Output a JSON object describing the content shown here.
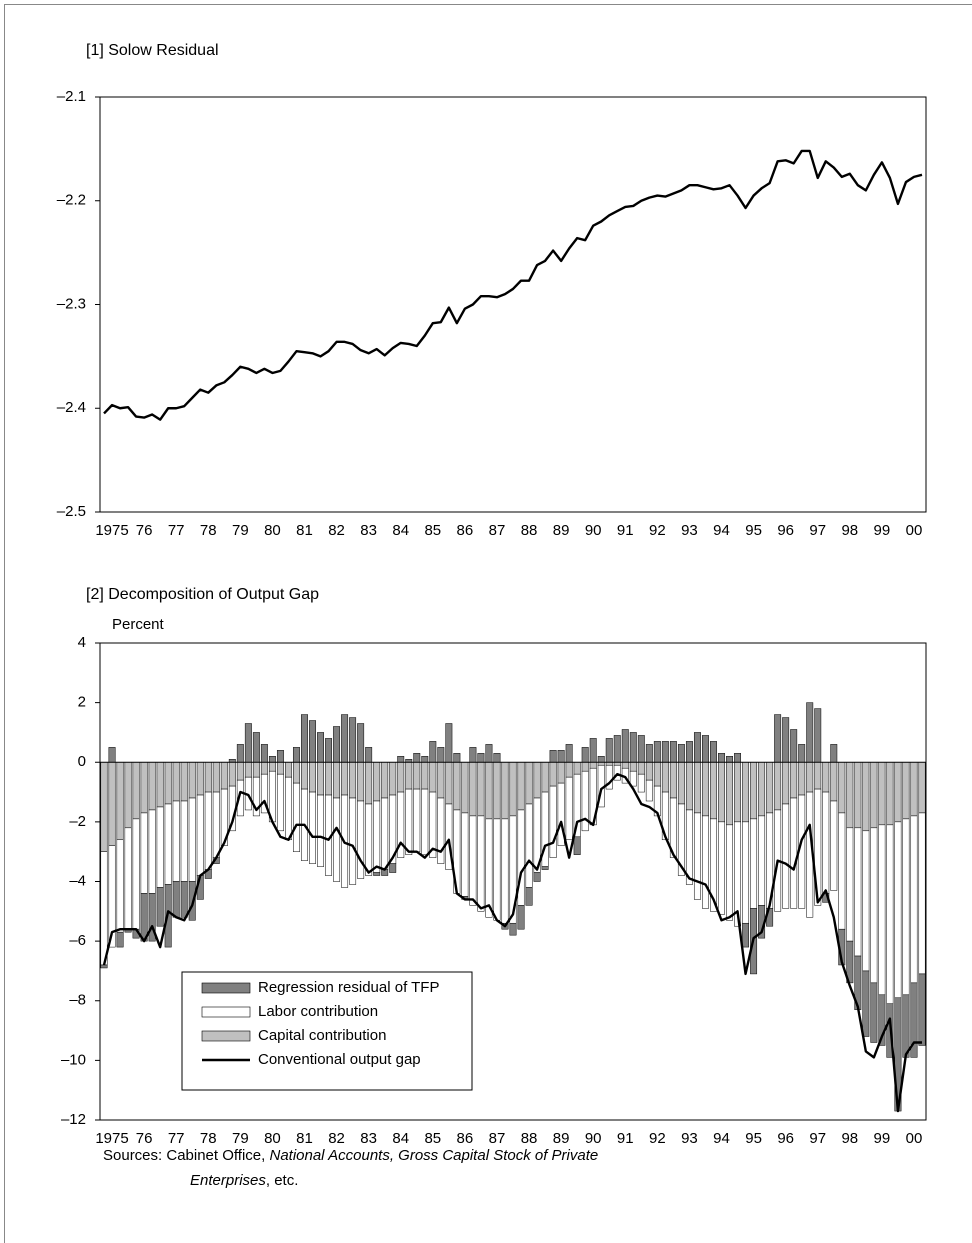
{
  "chart_data": [
    {
      "type": "line",
      "title": "[1] Solow Residual",
      "categories": [
        null,
        "1975",
        null,
        null,
        null,
        "76",
        null,
        null,
        null,
        "77",
        null,
        null,
        null,
        "78",
        null,
        null,
        null,
        "79",
        null,
        null,
        null,
        "80",
        null,
        null,
        null,
        "81",
        null,
        null,
        null,
        "82",
        null,
        null,
        null,
        "83",
        null,
        null,
        null,
        "84",
        null,
        null,
        null,
        "85",
        null,
        null,
        null,
        "86",
        null,
        null,
        null,
        "87",
        null,
        null,
        null,
        "88",
        null,
        null,
        null,
        "89",
        null,
        null,
        null,
        "90",
        null,
        null,
        null,
        "91",
        null,
        null,
        null,
        "92",
        null,
        null,
        null,
        "93",
        null,
        null,
        null,
        "94",
        null,
        null,
        null,
        "95",
        null,
        null,
        null,
        "96",
        null,
        null,
        null,
        "97",
        null,
        null,
        null,
        "98",
        null,
        null,
        null,
        "99",
        null,
        null,
        null,
        "00",
        null
      ],
      "values": [
        -2.405,
        -2.397,
        -2.4,
        -2.399,
        -2.408,
        -2.409,
        -2.406,
        -2.411,
        -2.4,
        -2.4,
        -2.398,
        -2.39,
        -2.382,
        -2.385,
        -2.378,
        -2.375,
        -2.368,
        -2.36,
        -2.362,
        -2.366,
        -2.362,
        -2.366,
        -2.364,
        -2.355,
        -2.345,
        -2.346,
        -2.347,
        -2.35,
        -2.345,
        -2.336,
        -2.336,
        -2.338,
        -2.344,
        -2.347,
        -2.343,
        -2.349,
        -2.342,
        -2.337,
        -2.338,
        -2.34,
        -2.33,
        -2.318,
        -2.317,
        -2.303,
        -2.318,
        -2.304,
        -2.3,
        -2.292,
        -2.292,
        -2.293,
        -2.29,
        -2.285,
        -2.277,
        -2.277,
        -2.262,
        -2.258,
        -2.248,
        -2.258,
        -2.246,
        -2.236,
        -2.238,
        -2.224,
        -2.22,
        -2.214,
        -2.21,
        -2.206,
        -2.205,
        -2.2,
        -2.197,
        -2.195,
        -2.196,
        -2.193,
        -2.19,
        -2.185,
        -2.185,
        -2.187,
        -2.189,
        -2.188,
        -2.185,
        -2.195,
        -2.207,
        -2.195,
        -2.188,
        -2.183,
        -2.162,
        -2.161,
        -2.164,
        -2.152,
        -2.152,
        -2.178,
        -2.162,
        -2.168,
        -2.177,
        -2.174,
        -2.185,
        -2.19,
        -2.175,
        -2.163,
        -2.178,
        -2.203,
        -2.182,
        -2.177,
        -2.175
      ],
      "color": "#000000",
      "ylim": [
        -2.5,
        -2.1
      ],
      "yticks": [
        {
          "value": -2.5,
          "label": "–2.5"
        },
        {
          "value": -2.4,
          "label": "–2.4"
        },
        {
          "value": -2.3,
          "label": "–2.3"
        },
        {
          "value": -2.2,
          "label": "–2.2"
        },
        {
          "value": -2.1,
          "label": "–2.1"
        }
      ]
    },
    {
      "type": "bar",
      "title": "[2] Decomposition of Output Gap",
      "ylabel": "Percent",
      "stacked": true,
      "categories": [
        null,
        "1975",
        null,
        null,
        null,
        "76",
        null,
        null,
        null,
        "77",
        null,
        null,
        null,
        "78",
        null,
        null,
        null,
        "79",
        null,
        null,
        null,
        "80",
        null,
        null,
        null,
        "81",
        null,
        null,
        null,
        "82",
        null,
        null,
        null,
        "83",
        null,
        null,
        null,
        "84",
        null,
        null,
        null,
        "85",
        null,
        null,
        null,
        "86",
        null,
        null,
        null,
        "87",
        null,
        null,
        null,
        "88",
        null,
        null,
        null,
        "89",
        null,
        null,
        null,
        "90",
        null,
        null,
        null,
        "91",
        null,
        null,
        null,
        "92",
        null,
        null,
        null,
        "93",
        null,
        null,
        null,
        "94",
        null,
        null,
        null,
        "95",
        null,
        null,
        null,
        "96",
        null,
        null,
        null,
        "97",
        null,
        null,
        null,
        "98",
        null,
        null,
        null,
        "99",
        null,
        null,
        null,
        "00",
        null
      ],
      "series": [
        {
          "name": "Regression residual of TFP",
          "type": "bar",
          "color": "#808080",
          "values": [
            -0.1,
            0.5,
            -0.5,
            -0.1,
            -0.3,
            -1.6,
            -1.6,
            -1.3,
            -2.1,
            -1.2,
            -1.2,
            -1.3,
            -0.8,
            -0.3,
            -0.2,
            0.0,
            0.1,
            0.6,
            1.3,
            1.0,
            0.6,
            0.2,
            0.4,
            0.0,
            0.5,
            1.6,
            1.4,
            1.0,
            0.8,
            1.2,
            1.6,
            1.5,
            1.3,
            0.5,
            -0.1,
            -0.2,
            -0.3,
            0.2,
            0.1,
            0.3,
            0.2,
            0.7,
            0.5,
            1.3,
            0.3,
            -0.1,
            0.5,
            0.3,
            0.6,
            0.3,
            -0.2,
            -0.4,
            -0.8,
            -0.6,
            -0.3,
            -0.1,
            0.4,
            0.4,
            0.6,
            -0.6,
            0.5,
            0.8,
            0.2,
            0.8,
            0.9,
            1.1,
            1.0,
            0.9,
            0.6,
            0.7,
            0.7,
            0.7,
            0.6,
            0.7,
            1.0,
            0.9,
            0.7,
            0.3,
            0.2,
            0.3,
            -0.8,
            -2.2,
            -1.1,
            -0.6,
            1.6,
            1.5,
            1.1,
            0.6,
            2.0,
            1.8,
            -0.3,
            0.6,
            -1.2,
            -1.4,
            -1.8,
            -2.2,
            -2.0,
            -1.7,
            -1.8,
            -3.8,
            -2.1,
            -2.5,
            -2.4
          ]
        },
        {
          "name": "Labor contribution",
          "type": "bar",
          "color": "#ffffff",
          "values": [
            -3.8,
            -3.4,
            -3.1,
            -3.4,
            -3.7,
            -2.7,
            -2.8,
            -2.7,
            -2.7,
            -2.7,
            -2.7,
            -2.8,
            -2.7,
            -2.6,
            -2.2,
            -1.9,
            -1.5,
            -1.2,
            -1.1,
            -1.3,
            -1.3,
            -1.7,
            -1.9,
            -2.1,
            -2.3,
            -2.4,
            -2.4,
            -2.4,
            -2.7,
            -2.8,
            -3.1,
            -2.9,
            -2.6,
            -2.4,
            -2.4,
            -2.4,
            -2.3,
            -2.2,
            -2.2,
            -2.1,
            -2.2,
            -2.2,
            -2.2,
            -2.2,
            -2.8,
            -2.8,
            -3.0,
            -3.2,
            -3.3,
            -3.4,
            -3.5,
            -3.6,
            -3.2,
            -2.8,
            -2.5,
            -2.5,
            -2.4,
            -2.1,
            -2.1,
            -2.1,
            -2.0,
            -1.9,
            -1.4,
            -0.8,
            -0.5,
            -0.5,
            -0.5,
            -0.6,
            -0.7,
            -1.0,
            -1.6,
            -2.0,
            -2.4,
            -2.5,
            -2.9,
            -3.1,
            -3.1,
            -3.1,
            -3.2,
            -3.5,
            -3.4,
            -3.0,
            -3.0,
            -3.2,
            -3.4,
            -3.5,
            -3.7,
            -3.8,
            -4.2,
            -3.9,
            -3.4,
            -3.0,
            -3.9,
            -3.8,
            -4.3,
            -4.7,
            -5.2,
            -5.7,
            -6.0,
            -5.9,
            -5.9,
            -5.6,
            -5.4
          ]
        },
        {
          "name": "Capital contribution",
          "type": "bar",
          "color": "#c0c0c0",
          "values": [
            -3.0,
            -2.8,
            -2.6,
            -2.2,
            -1.9,
            -1.7,
            -1.6,
            -1.5,
            -1.4,
            -1.3,
            -1.3,
            -1.2,
            -1.1,
            -1.0,
            -1.0,
            -0.9,
            -0.8,
            -0.6,
            -0.5,
            -0.5,
            -0.4,
            -0.3,
            -0.4,
            -0.5,
            -0.7,
            -0.9,
            -1.0,
            -1.1,
            -1.1,
            -1.2,
            -1.1,
            -1.2,
            -1.3,
            -1.4,
            -1.3,
            -1.2,
            -1.1,
            -1.0,
            -0.9,
            -0.9,
            -0.9,
            -1.0,
            -1.2,
            -1.4,
            -1.6,
            -1.7,
            -1.8,
            -1.8,
            -1.9,
            -1.9,
            -1.9,
            -1.8,
            -1.6,
            -1.4,
            -1.2,
            -1.0,
            -0.8,
            -0.7,
            -0.5,
            -0.4,
            -0.3,
            -0.2,
            -0.1,
            -0.1,
            -0.1,
            -0.2,
            -0.3,
            -0.4,
            -0.6,
            -0.8,
            -1.0,
            -1.2,
            -1.4,
            -1.6,
            -1.7,
            -1.8,
            -1.9,
            -2.0,
            -2.1,
            -2.0,
            -2.0,
            -1.9,
            -1.8,
            -1.7,
            -1.6,
            -1.4,
            -1.2,
            -1.1,
            -1.0,
            -0.9,
            -1.0,
            -1.3,
            -1.7,
            -2.2,
            -2.2,
            -2.3,
            -2.2,
            -2.1,
            -2.1,
            -2.0,
            -1.9,
            -1.8,
            -1.7
          ]
        },
        {
          "name": "Conventional output gap",
          "type": "line",
          "color": "#000000",
          "values": [
            -6.8,
            -5.7,
            -5.6,
            -5.6,
            -5.6,
            -6.0,
            -5.5,
            -6.2,
            -5.0,
            -5.2,
            -5.3,
            -4.8,
            -3.8,
            -3.6,
            -3.2,
            -2.7,
            -2.0,
            -1.0,
            -1.1,
            -1.6,
            -1.3,
            -2.0,
            -2.5,
            -2.6,
            -2.1,
            -2.1,
            -2.5,
            -2.5,
            -2.6,
            -2.2,
            -2.7,
            -2.8,
            -3.3,
            -3.7,
            -3.5,
            -3.6,
            -3.2,
            -2.7,
            -3.0,
            -3.0,
            -3.2,
            -2.9,
            -3.0,
            -2.6,
            -4.4,
            -4.6,
            -4.6,
            -4.9,
            -4.8,
            -5.3,
            -5.5,
            -5.1,
            -3.7,
            -3.3,
            -3.6,
            -2.8,
            -2.7,
            -2.0,
            -3.2,
            -2.0,
            -1.9,
            -2.1,
            -0.9,
            -0.7,
            -0.4,
            -0.5,
            -0.9,
            -1.4,
            -1.5,
            -1.7,
            -2.5,
            -3.1,
            -3.5,
            -3.9,
            -4.0,
            -4.1,
            -4.6,
            -5.3,
            -5.2,
            -5.0,
            -7.1,
            -5.9,
            -5.7,
            -4.8,
            -3.3,
            -3.4,
            -3.6,
            -2.6,
            -2.1,
            -4.7,
            -4.3,
            -5.2,
            -6.7,
            -7.5,
            -8.2,
            -9.7,
            -9.9,
            -9.2,
            -8.6,
            -11.7,
            -9.8,
            -9.4,
            -9.4
          ]
        }
      ],
      "ylim": [
        -12,
        4
      ],
      "yticks": [
        {
          "value": -12,
          "label": "–12"
        },
        {
          "value": -10,
          "label": "–10"
        },
        {
          "value": -8,
          "label": "–8"
        },
        {
          "value": -6,
          "label": "–6"
        },
        {
          "value": -4,
          "label": "–4"
        },
        {
          "value": -2,
          "label": "–2"
        },
        0,
        2,
        4
      ],
      "sources": [
        "Sources: Cabinet Office, ",
        "National Accounts, Gross Capital Stock of Private",
        "Enterprises",
        ", etc."
      ]
    }
  ]
}
